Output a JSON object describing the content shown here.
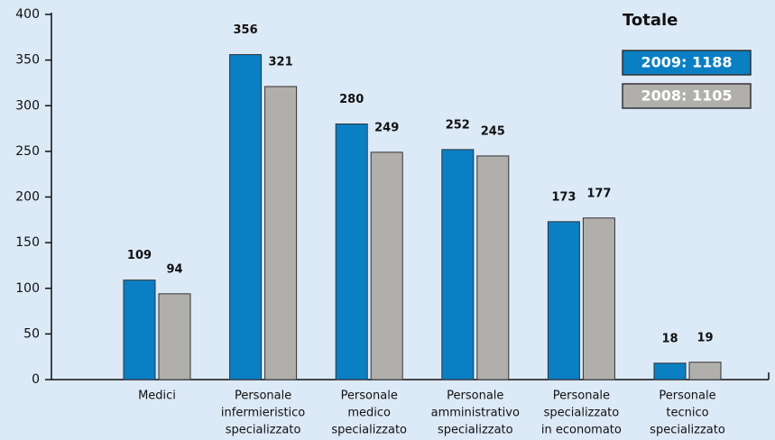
{
  "chart_data": {
    "type": "bar",
    "categories": [
      [
        "Medici"
      ],
      [
        "Personale",
        "infermieristico",
        "specializzato"
      ],
      [
        "Personale",
        "medico",
        "specializzato"
      ],
      [
        "Personale",
        "amministrativo",
        "specializzato"
      ],
      [
        "Personale",
        "specializzato",
        "in economato"
      ],
      [
        "Personale",
        "tecnico",
        "specializzato"
      ]
    ],
    "legend_title": "Totale",
    "series": [
      {
        "name": "2009: 1188",
        "color": "#0a7fc4",
        "values": [
          109,
          356,
          280,
          252,
          173,
          18
        ]
      },
      {
        "name": "2008: 1105",
        "color": "#b1afac",
        "values": [
          94,
          321,
          249,
          245,
          177,
          19
        ]
      }
    ],
    "ylim": [
      0,
      400
    ],
    "yticks": [
      0,
      50,
      100,
      150,
      200,
      250,
      300,
      350,
      400
    ],
    "grid": false
  }
}
